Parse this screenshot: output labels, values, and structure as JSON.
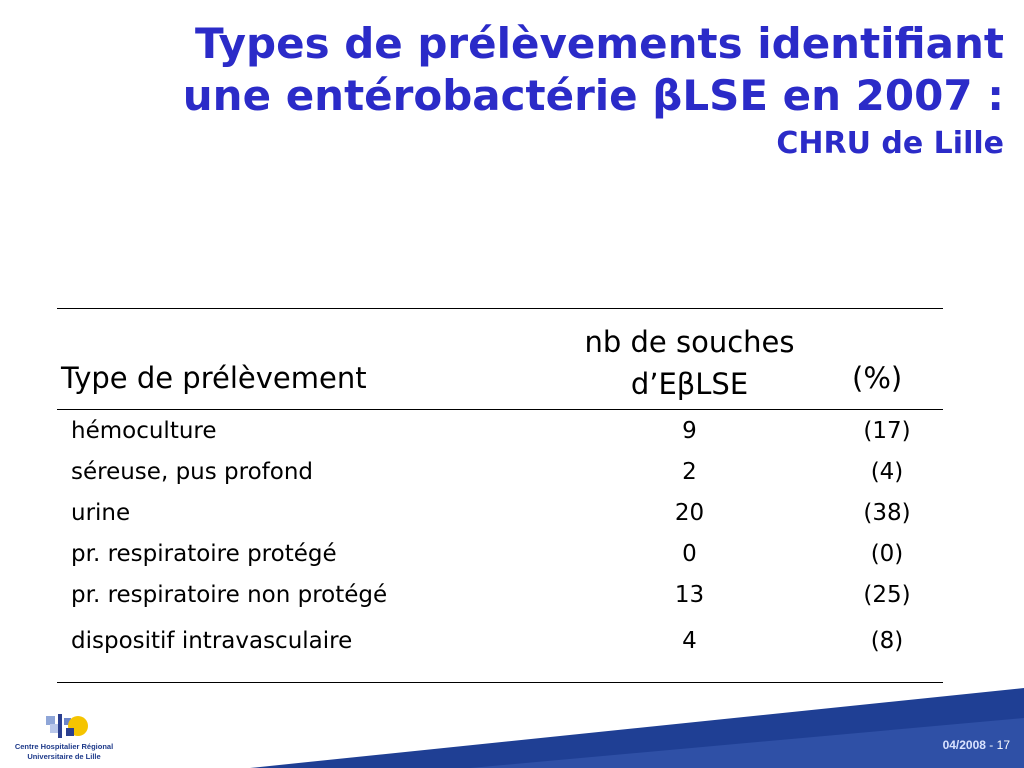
{
  "title": {
    "line1": "Types de prélèvements identifiant",
    "line2": "une entérobactérie βLSE en 2007 :",
    "line3": "CHRU de Lille"
  },
  "table": {
    "headers": {
      "type": "Type de prélèvement",
      "count_line1": "nb de souches",
      "count_line2": "d’EβLSE",
      "percent": "(%)"
    },
    "rows": [
      {
        "type": "hémoculture",
        "count": "9",
        "percent": "(17)"
      },
      {
        "type": "séreuse, pus profond",
        "count": "2",
        "percent": "(4)"
      },
      {
        "type": "urine",
        "count": "20",
        "percent": "(38)"
      },
      {
        "type": "pr. respiratoire protégé",
        "count": "0",
        "percent": "(0)"
      },
      {
        "type": "pr. respiratoire non protégé",
        "count": "13",
        "percent": "(25)"
      },
      {
        "type": "dispositif intravasculaire",
        "count": "4",
        "percent": "(8)"
      }
    ]
  },
  "logo": {
    "line1": "Centre Hospitalier Régional",
    "line2": "Universitaire de Lille"
  },
  "footer": {
    "date": "04/2008",
    "separator": "-",
    "page": "17"
  },
  "colors": {
    "title": "#2b2bc8",
    "band": "#1f3f94",
    "logo_text": "#1e3a8a",
    "logo_yellow": "#f5c400"
  }
}
